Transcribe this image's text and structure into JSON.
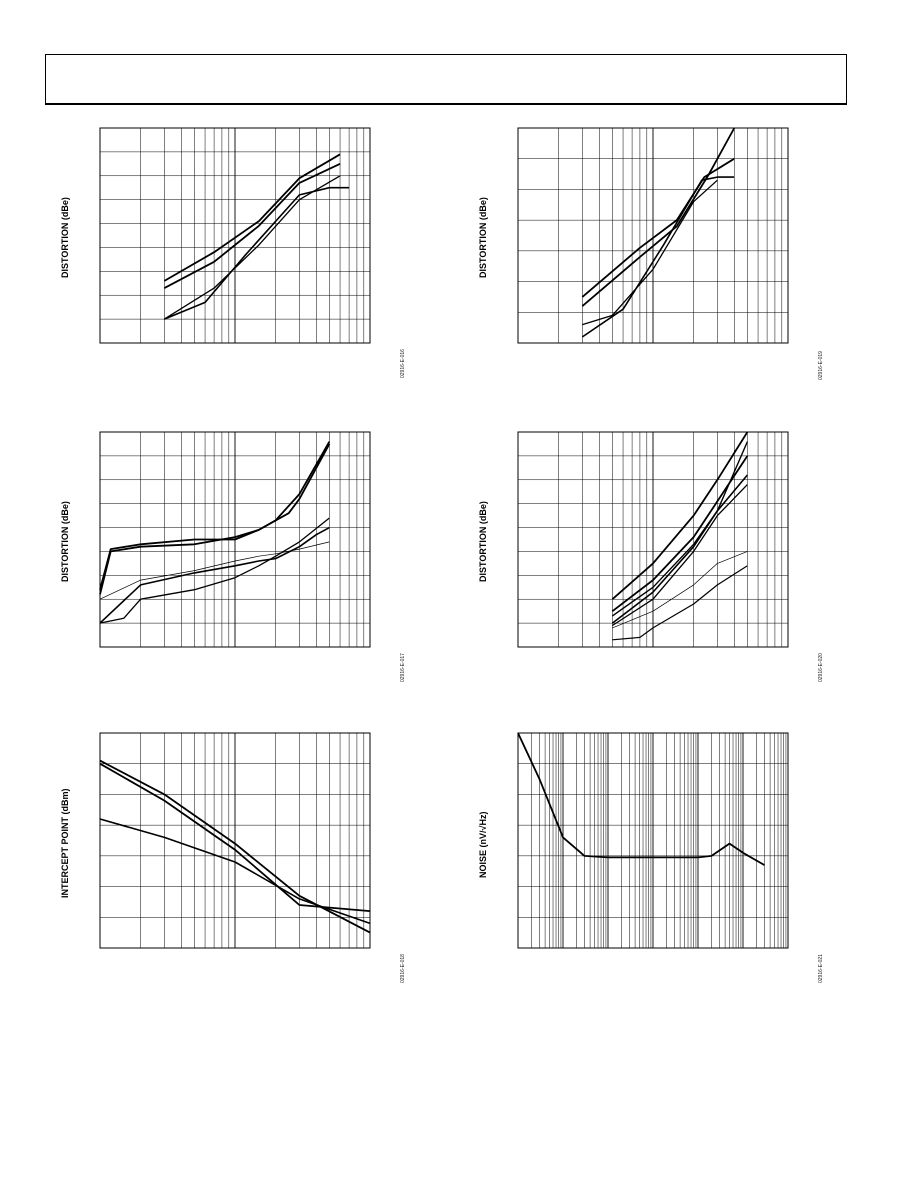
{
  "header": {
    "text": ""
  },
  "chart_data": [
    {
      "id": "p1",
      "type": "line",
      "figure_code": "02916-E-016",
      "xlabel": "",
      "ylabel": "DISTORTION (dBe)",
      "xscale": "log",
      "xlim": [
        0.1,
        10
      ],
      "ylim": [
        0,
        9
      ],
      "series": [
        {
          "values": [
            [
              0.3,
              2.6
            ],
            [
              0.7,
              3.8
            ],
            [
              1.5,
              5.1
            ],
            [
              3,
              6.9
            ],
            [
              6,
              7.9
            ]
          ]
        },
        {
          "values": [
            [
              0.3,
              2.3
            ],
            [
              0.7,
              3.4
            ],
            [
              1.5,
              4.9
            ],
            [
              3,
              6.7
            ],
            [
              6,
              7.5
            ]
          ]
        },
        {
          "values": [
            [
              0.3,
              1.0
            ],
            [
              0.6,
              1.7
            ],
            [
              1.2,
              3.7
            ],
            [
              3,
              6.2
            ],
            [
              5,
              6.5
            ],
            [
              7,
              6.5
            ]
          ]
        },
        {
          "values": [
            [
              0.3,
              1.0
            ],
            [
              0.7,
              2.3
            ],
            [
              1.5,
              4.1
            ],
            [
              3,
              6.0
            ],
            [
              6,
              7.0
            ]
          ]
        }
      ]
    },
    {
      "id": "p2",
      "type": "line",
      "figure_code": "02916-E-019",
      "xlabel": "",
      "ylabel": "DISTORTION (dBe)",
      "xscale": "log",
      "xlim": [
        0.1,
        10
      ],
      "ylim": [
        0,
        7
      ],
      "series": [
        {
          "values": [
            [
              0.3,
              1.2
            ],
            [
              0.8,
              2.8
            ],
            [
              1.5,
              3.8
            ],
            [
              2.6,
              5.5
            ],
            [
              4,
              7.0
            ]
          ]
        },
        {
          "values": [
            [
              0.3,
              1.5
            ],
            [
              0.8,
              3.1
            ],
            [
              1.5,
              4.0
            ],
            [
              2.4,
              5.4
            ],
            [
              4,
              6.0
            ]
          ]
        },
        {
          "values": [
            [
              0.3,
              0.2
            ],
            [
              0.6,
              1.1
            ],
            [
              1.2,
              3.2
            ],
            [
              2.3,
              5.3
            ],
            [
              3,
              5.4
            ],
            [
              4,
              5.4
            ]
          ]
        },
        {
          "values": [
            [
              0.3,
              0.6
            ],
            [
              0.5,
              0.9
            ],
            [
              1.0,
              2.4
            ],
            [
              2.0,
              4.6
            ],
            [
              3,
              5.3
            ]
          ]
        }
      ]
    },
    {
      "id": "p3",
      "type": "line",
      "figure_code": "02916-E-017",
      "xlabel": "",
      "ylabel": "DISTORTION (dBe)",
      "xscale": "log",
      "xlim": [
        0.1,
        10
      ],
      "ylim": [
        0,
        9
      ],
      "series": [
        {
          "values": [
            [
              0.1,
              2.2
            ],
            [
              0.12,
              4.0
            ],
            [
              0.2,
              4.2
            ],
            [
              0.5,
              4.3
            ],
            [
              1,
              4.6
            ],
            [
              1.5,
              4.9
            ],
            [
              2,
              5.3
            ],
            [
              3,
              6.4
            ],
            [
              5,
              8.6
            ]
          ]
        },
        {
          "values": [
            [
              0.1,
              2.4
            ],
            [
              0.12,
              4.1
            ],
            [
              0.2,
              4.3
            ],
            [
              0.5,
              4.5
            ],
            [
              1,
              4.5
            ],
            [
              1.5,
              4.9
            ],
            [
              2.5,
              5.6
            ],
            [
              3,
              6.2
            ],
            [
              5,
              8.5
            ]
          ]
        },
        {
          "values": [
            [
              0.1,
              1.0
            ],
            [
              0.2,
              2.6
            ],
            [
              0.5,
              3.1
            ],
            [
              1,
              3.4
            ],
            [
              1.5,
              3.6
            ],
            [
              2,
              3.7
            ],
            [
              3,
              4.2
            ],
            [
              4,
              4.7
            ],
            [
              5,
              5.0
            ]
          ]
        },
        {
          "values": [
            [
              0.1,
              1.0
            ],
            [
              0.15,
              1.2
            ],
            [
              0.2,
              2.0
            ],
            [
              0.5,
              2.4
            ],
            [
              1,
              2.9
            ],
            [
              1.5,
              3.4
            ],
            [
              2,
              3.8
            ],
            [
              3,
              4.4
            ],
            [
              5,
              5.4
            ]
          ]
        },
        {
          "values": [
            [
              0.1,
              2.0
            ],
            [
              0.2,
              2.8
            ],
            [
              0.5,
              3.2
            ],
            [
              1,
              3.6
            ],
            [
              1.5,
              3.8
            ],
            [
              2,
              3.9
            ],
            [
              3,
              4.1
            ],
            [
              5,
              4.4
            ]
          ]
        }
      ]
    },
    {
      "id": "p4",
      "type": "line",
      "figure_code": "02916-E-020",
      "xlabel": "",
      "ylabel": "DISTORTION (dBe)",
      "xscale": "log",
      "xlim": [
        0.1,
        10
      ],
      "ylim": [
        0,
        9
      ],
      "series": [
        {
          "values": [
            [
              0.5,
              2.0
            ],
            [
              1,
              3.5
            ],
            [
              2,
              5.5
            ],
            [
              3,
              7.0
            ],
            [
              5,
              9.0
            ]
          ]
        },
        {
          "values": [
            [
              0.5,
              1.5
            ],
            [
              1,
              2.8
            ],
            [
              2,
              4.6
            ],
            [
              3,
              6.1
            ],
            [
              5,
              8.0
            ]
          ]
        },
        {
          "values": [
            [
              0.5,
              1.0
            ],
            [
              1,
              2.3
            ],
            [
              2,
              4.2
            ],
            [
              3,
              5.7
            ],
            [
              5,
              7.2
            ]
          ]
        },
        {
          "values": [
            [
              0.5,
              0.9
            ],
            [
              1,
              2.0
            ],
            [
              2,
              4.0
            ],
            [
              3,
              5.5
            ],
            [
              5,
              6.8
            ]
          ]
        },
        {
          "values": [
            [
              0.5,
              0.8
            ],
            [
              1,
              1.5
            ],
            [
              2,
              2.6
            ],
            [
              3,
              3.5
            ],
            [
              5,
              4.0
            ]
          ]
        },
        {
          "values": [
            [
              0.5,
              0.3
            ],
            [
              0.8,
              0.4
            ],
            [
              1,
              0.8
            ],
            [
              2,
              1.8
            ],
            [
              3,
              2.6
            ],
            [
              5,
              3.4
            ]
          ]
        },
        {
          "values": [
            [
              0.5,
              1.3
            ],
            [
              1,
              2.5
            ],
            [
              2,
              4.3
            ],
            [
              3,
              5.7
            ],
            [
              5,
              8.6
            ]
          ]
        }
      ]
    },
    {
      "id": "p5",
      "type": "line",
      "figure_code": "02916-E-018",
      "xlabel": "",
      "ylabel": "INTERCEPT POINT (dBm)",
      "xscale": "log",
      "xlim": [
        0.1,
        10
      ],
      "ylim": [
        0,
        7
      ],
      "series": [
        {
          "values": [
            [
              0.1,
              6.1
            ],
            [
              0.3,
              5.0
            ],
            [
              1,
              3.4
            ],
            [
              3,
              1.7
            ],
            [
              10,
              0.5
            ]
          ]
        },
        {
          "values": [
            [
              0.1,
              6.0
            ],
            [
              0.3,
              4.8
            ],
            [
              1,
              3.2
            ],
            [
              3,
              1.4
            ],
            [
              10,
              1.2
            ]
          ]
        },
        {
          "values": [
            [
              0.1,
              4.2
            ],
            [
              0.3,
              3.6
            ],
            [
              1,
              2.8
            ],
            [
              3,
              1.6
            ],
            [
              10,
              0.8
            ]
          ]
        }
      ]
    },
    {
      "id": "p6",
      "type": "line",
      "figure_code": "02916-E-021",
      "xlabel": "",
      "ylabel": "NOISE (nV/√Hz)",
      "xscale": "log",
      "xlim": [
        10,
        10000000
      ],
      "ylim": [
        0,
        7
      ],
      "series": [
        {
          "values": [
            [
              10,
              7.0
            ],
            [
              30,
              5.5
            ],
            [
              100,
              3.6
            ],
            [
              300,
              3.0
            ],
            [
              1000,
              2.95
            ],
            [
              10000,
              2.95
            ],
            [
              100000,
              2.95
            ],
            [
              200000,
              3.0
            ],
            [
              500000,
              3.4
            ],
            [
              1000000,
              3.1
            ],
            [
              3000000,
              2.7
            ]
          ]
        }
      ]
    }
  ]
}
